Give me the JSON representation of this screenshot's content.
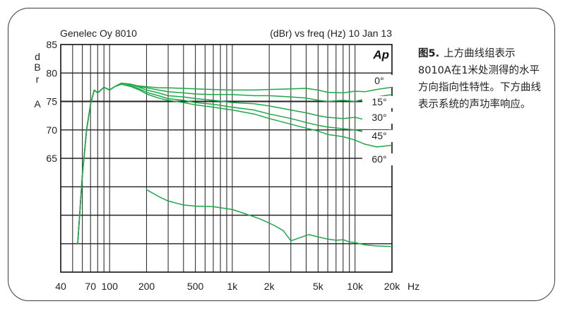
{
  "caption": {
    "lead": "图5.",
    "text": "上方曲线组表示8010A在1米处测得的水平方向指向性特性。下方曲线表示系统的声功率响应。"
  },
  "chart_data": {
    "type": "line",
    "title_left": "Genelec Oy 8010",
    "title_right": "(dBr) vs freq (Hz) 10 Jan 13",
    "brand_mark": "Ap",
    "xunit": "Hz",
    "xscale": "log",
    "xlim": [
      40,
      20000
    ],
    "xticks": [
      {
        "value": 40,
        "label": "40"
      },
      {
        "value": 70,
        "label": "70"
      },
      {
        "value": 100,
        "label": "100"
      },
      {
        "value": 200,
        "label": "200"
      },
      {
        "value": 500,
        "label": "500"
      },
      {
        "value": 1000,
        "label": "1k"
      },
      {
        "value": 2000,
        "label": "2k"
      },
      {
        "value": 5000,
        "label": "5k"
      },
      {
        "value": 10000,
        "label": "10k"
      },
      {
        "value": 20000,
        "label": "20k"
      }
    ],
    "ylim": [
      45,
      85
    ],
    "yticks": [
      65,
      70,
      75,
      80,
      85
    ],
    "ylabel_letters": [
      "d",
      "B",
      "r",
      "A"
    ],
    "grid": true,
    "line_color": "#1fa84a",
    "series": [
      {
        "name": "0°",
        "values": [
          [
            55,
            50
          ],
          [
            60,
            62
          ],
          [
            65,
            70
          ],
          [
            70,
            74.5
          ],
          [
            75,
            77
          ],
          [
            80,
            76.5
          ],
          [
            90,
            77.5
          ],
          [
            100,
            77
          ],
          [
            110,
            77.6
          ],
          [
            125,
            78.2
          ],
          [
            150,
            78
          ],
          [
            175,
            77.7
          ],
          [
            200,
            77.6
          ],
          [
            250,
            77.4
          ],
          [
            300,
            77.4
          ],
          [
            400,
            77.3
          ],
          [
            500,
            77.2
          ],
          [
            700,
            77.1
          ],
          [
            1000,
            77
          ],
          [
            1500,
            77
          ],
          [
            2000,
            77.1
          ],
          [
            3000,
            77.2
          ],
          [
            4000,
            77.3
          ],
          [
            5000,
            77
          ],
          [
            6000,
            76.6
          ],
          [
            8000,
            76.5
          ],
          [
            10000,
            76.8
          ],
          [
            12000,
            76.7
          ],
          [
            15000,
            77.1
          ],
          [
            20000,
            77.5
          ]
        ]
      },
      {
        "name": "15°",
        "values": [
          [
            55,
            50
          ],
          [
            60,
            62
          ],
          [
            65,
            70
          ],
          [
            70,
            74.5
          ],
          [
            75,
            77
          ],
          [
            80,
            76.5
          ],
          [
            90,
            77.5
          ],
          [
            100,
            77
          ],
          [
            110,
            77.6
          ],
          [
            125,
            78.2
          ],
          [
            150,
            78
          ],
          [
            175,
            77.6
          ],
          [
            200,
            77.4
          ],
          [
            250,
            77
          ],
          [
            300,
            76.7
          ],
          [
            400,
            76.5
          ],
          [
            500,
            76.3
          ],
          [
            700,
            76.2
          ],
          [
            1000,
            76.2
          ],
          [
            1500,
            76
          ],
          [
            2000,
            76
          ],
          [
            3000,
            75.8
          ],
          [
            4000,
            75.6
          ],
          [
            5000,
            75.2
          ],
          [
            6000,
            75
          ],
          [
            8000,
            75.2
          ],
          [
            10000,
            75
          ],
          [
            12000,
            75.4
          ],
          [
            15000,
            75.8
          ],
          [
            20000,
            76.2
          ]
        ]
      },
      {
        "name": "30°",
        "values": [
          [
            55,
            50
          ],
          [
            60,
            62
          ],
          [
            65,
            70
          ],
          [
            70,
            74.5
          ],
          [
            75,
            77
          ],
          [
            80,
            76.5
          ],
          [
            90,
            77.5
          ],
          [
            100,
            77
          ],
          [
            110,
            77.6
          ],
          [
            125,
            78.2
          ],
          [
            150,
            78
          ],
          [
            175,
            77.5
          ],
          [
            200,
            77
          ],
          [
            250,
            76.5
          ],
          [
            300,
            76
          ],
          [
            400,
            75.8
          ],
          [
            500,
            75.5
          ],
          [
            700,
            75.2
          ],
          [
            1000,
            74.8
          ],
          [
            1500,
            74.6
          ],
          [
            2000,
            74.2
          ],
          [
            3000,
            73.5
          ],
          [
            4000,
            73
          ],
          [
            5000,
            72.5
          ],
          [
            6000,
            72.2
          ],
          [
            8000,
            72
          ],
          [
            10000,
            72.2
          ],
          [
            12000,
            71.8
          ],
          [
            15000,
            72
          ],
          [
            20000,
            72.3
          ]
        ]
      },
      {
        "name": "45°",
        "values": [
          [
            55,
            50
          ],
          [
            60,
            62
          ],
          [
            65,
            70
          ],
          [
            70,
            74.5
          ],
          [
            75,
            77
          ],
          [
            80,
            76.5
          ],
          [
            90,
            77.5
          ],
          [
            100,
            77
          ],
          [
            110,
            77.6
          ],
          [
            125,
            78.2
          ],
          [
            150,
            77.8
          ],
          [
            175,
            77.2
          ],
          [
            200,
            76.6
          ],
          [
            250,
            76
          ],
          [
            300,
            75.5
          ],
          [
            400,
            75.2
          ],
          [
            500,
            74.8
          ],
          [
            700,
            74.5
          ],
          [
            1000,
            74
          ],
          [
            1500,
            73.5
          ],
          [
            2000,
            72.8
          ],
          [
            3000,
            72
          ],
          [
            4000,
            71.3
          ],
          [
            5000,
            70.8
          ],
          [
            6000,
            70.5
          ],
          [
            8000,
            70.2
          ],
          [
            10000,
            70
          ],
          [
            12000,
            69.6
          ],
          [
            15000,
            69.5
          ],
          [
            20000,
            70
          ]
        ]
      },
      {
        "name": "60°",
        "values": [
          [
            55,
            50
          ],
          [
            60,
            62
          ],
          [
            65,
            70
          ],
          [
            70,
            74.5
          ],
          [
            75,
            77
          ],
          [
            80,
            76.5
          ],
          [
            90,
            77.5
          ],
          [
            100,
            77
          ],
          [
            110,
            77.6
          ],
          [
            125,
            78
          ],
          [
            150,
            77.6
          ],
          [
            175,
            77
          ],
          [
            200,
            76.3
          ],
          [
            250,
            75.6
          ],
          [
            300,
            75.2
          ],
          [
            400,
            74.8
          ],
          [
            500,
            74.4
          ],
          [
            700,
            74
          ],
          [
            1000,
            73.5
          ],
          [
            1500,
            72.8
          ],
          [
            2000,
            72
          ],
          [
            3000,
            71
          ],
          [
            4000,
            70.3
          ],
          [
            5000,
            69.8
          ],
          [
            6000,
            69.2
          ],
          [
            8000,
            68.8
          ],
          [
            10000,
            68.2
          ],
          [
            12000,
            67.5
          ],
          [
            15000,
            67
          ],
          [
            20000,
            67.3
          ]
        ]
      },
      {
        "name": "",
        "values": [
          [
            200,
            59.5
          ],
          [
            250,
            58.3
          ],
          [
            300,
            57.5
          ],
          [
            400,
            56.8
          ],
          [
            500,
            56.6
          ],
          [
            700,
            56.5
          ],
          [
            1000,
            56
          ],
          [
            1300,
            55.2
          ],
          [
            1700,
            54.3
          ],
          [
            2200,
            53.2
          ],
          [
            2600,
            52.3
          ],
          [
            3000,
            50.5
          ],
          [
            3500,
            51
          ],
          [
            4200,
            51.6
          ],
          [
            5000,
            51.2
          ],
          [
            6000,
            50.8
          ],
          [
            7000,
            50.6
          ],
          [
            8000,
            50.7
          ],
          [
            9000,
            50.3
          ],
          [
            10000,
            50.2
          ],
          [
            12000,
            49.8
          ],
          [
            15000,
            49.6
          ],
          [
            20000,
            49.5
          ]
        ]
      }
    ]
  }
}
